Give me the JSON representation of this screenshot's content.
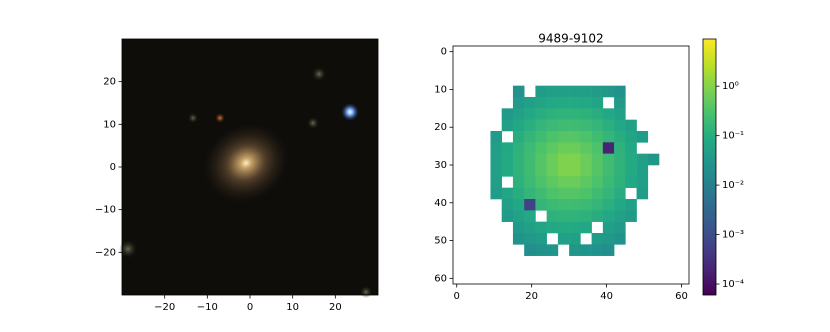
{
  "chart_data": [
    {
      "type": "image",
      "xlim": [
        -30,
        30
      ],
      "ylim": [
        -30,
        30
      ],
      "xticks": [
        {
          "value": -20,
          "label": "−20"
        },
        {
          "value": -10,
          "label": "−10"
        },
        0,
        10,
        20
      ],
      "yticks": [
        {
          "value": -20,
          "label": "−20"
        },
        {
          "value": -10,
          "label": "−10"
        },
        0,
        10,
        20
      ]
    },
    {
      "type": "heatmap",
      "title": "9489-9102",
      "colormap": "viridis",
      "xlim": [
        -1,
        62
      ],
      "ylim": [
        61.5,
        -1.5
      ],
      "xticks": [
        0,
        20,
        40,
        60
      ],
      "yticks": [
        0,
        10,
        20,
        30,
        40,
        50,
        60
      ],
      "x": [
        10.5,
        13.5,
        16.5,
        19.5,
        22.5,
        25.5,
        28.5,
        31.5,
        34.5,
        37.5,
        40.5,
        43.5,
        46.5,
        49.5,
        52.5,
        55.5
      ],
      "y": [
        10.5,
        13.5,
        16.5,
        19.5,
        22.5,
        25.5,
        28.5,
        31.5,
        34.5,
        37.5,
        40.5,
        43.5,
        46.5,
        49.5,
        52.5,
        55.5
      ],
      "z": [
        [
          null,
          null,
          0.025,
          null,
          0.041,
          0.047,
          0.05,
          0.05,
          0.047,
          0.041,
          0.033,
          0.025,
          null,
          null,
          null,
          null
        ],
        [
          null,
          null,
          0.038,
          0.05,
          0.064,
          0.076,
          0.083,
          0.083,
          0.076,
          0.064,
          null,
          0.038,
          null,
          null,
          null,
          null
        ],
        [
          null,
          0.038,
          0.054,
          0.076,
          0.099,
          0.12,
          0.13,
          0.13,
          0.12,
          0.099,
          0.076,
          0.054,
          null,
          null,
          null,
          null
        ],
        [
          null,
          0.05,
          0.076,
          0.11,
          0.15,
          0.19,
          0.22,
          0.22,
          0.19,
          0.15,
          0.11,
          0.076,
          0.05,
          null,
          null,
          null
        ],
        [
          0.041,
          null,
          0.099,
          0.15,
          0.22,
          0.3,
          0.36,
          0.36,
          0.3,
          0.22,
          0.15,
          0.099,
          0.064,
          0.041,
          null,
          null
        ],
        [
          0.047,
          0.076,
          0.12,
          0.19,
          0.3,
          0.44,
          0.58,
          0.58,
          0.44,
          0.3,
          0.0002,
          0.12,
          0.076,
          null,
          null,
          null
        ],
        [
          0.05,
          0.083,
          0.13,
          0.22,
          0.36,
          0.58,
          0.89,
          0.89,
          0.58,
          0.36,
          0.22,
          0.13,
          0.083,
          0.05,
          0.031,
          null
        ],
        [
          0.05,
          0.083,
          0.13,
          0.22,
          0.36,
          0.58,
          0.89,
          0.89,
          0.58,
          0.36,
          0.22,
          0.13,
          0.083,
          0.05,
          null,
          null
        ],
        [
          0.047,
          null,
          0.12,
          0.19,
          0.3,
          0.44,
          0.58,
          0.58,
          0.44,
          0.3,
          0.19,
          0.12,
          0.076,
          0.047,
          null,
          null
        ],
        [
          0.041,
          0.064,
          0.099,
          0.15,
          0.22,
          0.3,
          0.36,
          0.36,
          0.3,
          0.22,
          0.15,
          0.099,
          null,
          0.041,
          null,
          null
        ],
        [
          null,
          0.05,
          0.076,
          0.0006,
          0.15,
          0.19,
          0.22,
          0.22,
          0.19,
          0.15,
          0.11,
          0.076,
          0.05,
          null,
          null,
          null
        ],
        [
          null,
          0.038,
          0.054,
          0.076,
          null,
          0.12,
          0.13,
          0.13,
          0.12,
          0.099,
          0.076,
          0.054,
          0.038,
          null,
          null,
          null
        ],
        [
          null,
          null,
          0.038,
          0.05,
          0.064,
          0.076,
          0.083,
          0.083,
          0.076,
          null,
          0.05,
          0.038,
          null,
          null,
          null,
          null
        ],
        [
          null,
          null,
          0.025,
          0.033,
          0.041,
          null,
          0.05,
          0.05,
          null,
          0.041,
          0.033,
          0.025,
          null,
          null,
          null,
          null
        ],
        [
          null,
          null,
          null,
          0.021,
          0.025,
          0.029,
          null,
          0.031,
          0.029,
          0.025,
          0.021,
          null,
          null,
          null,
          null,
          null
        ],
        [
          null,
          null,
          null,
          null,
          null,
          null,
          null,
          null,
          null,
          null,
          null,
          null,
          null,
          null,
          null,
          null
        ]
      ],
      "colorbar": {
        "scale": "log",
        "clim": [
          6e-05,
          9
        ],
        "ticks": [
          {
            "value": 0.0001,
            "label": "10⁻⁴"
          },
          {
            "value": 0.001,
            "label": "10⁻³"
          },
          {
            "value": 0.01,
            "label": "10⁻²"
          },
          {
            "value": 0.1,
            "label": "10⁻¹"
          },
          {
            "value": 1,
            "label": "10⁰"
          }
        ]
      }
    }
  ]
}
